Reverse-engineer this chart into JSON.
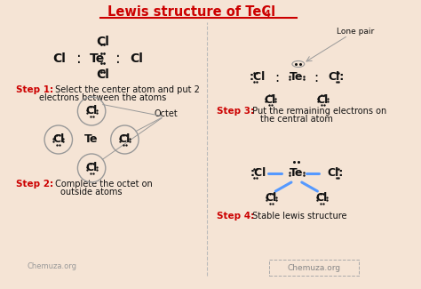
{
  "title1": "Lewis structure of TeCl",
  "title_sub": "4",
  "bg_color": "#f5e4d5",
  "title_color": "#cc0000",
  "step_color": "#cc0000",
  "bond_color": "#5599ff",
  "div_color": "#bbbbbb",
  "text_color": "#111111",
  "dot_color": "#111111",
  "circle_color": "#999999",
  "step1_bold": "Step 1:",
  "step1_rest": " Select the center atom and put 2",
  "step1_line2": "electrons between the atoms",
  "step2_bold": "Step 2:",
  "step2_rest": " Complete the octet on",
  "step2_line2": "outside atoms",
  "step3_bold": "Step 3:",
  "step3_rest": " Put the remaining electrons on",
  "step3_line2": "the central atom",
  "step4_bold": "Step 4:",
  "step4_rest": " Stable lewis structure",
  "lone_pair": "Lone pair",
  "octet": "Octet",
  "chemuza": "Chemuza.org"
}
